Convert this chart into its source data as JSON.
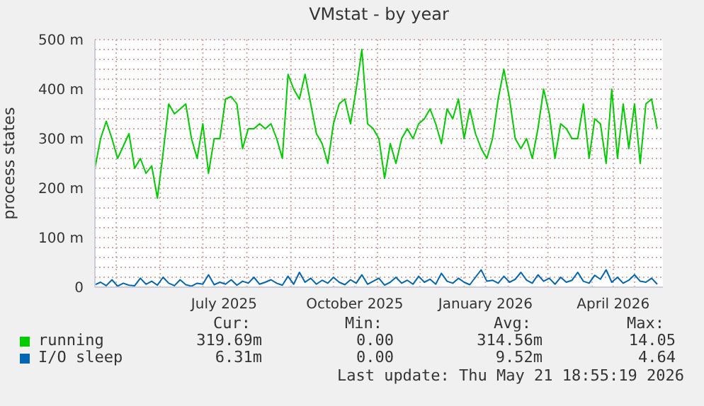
{
  "chart_data": {
    "type": "line",
    "title": "VMstat - by year",
    "ylabel": "process states",
    "x": [
      "2025-04-16",
      "2025-04-20",
      "2025-04-24",
      "2025-04-28",
      "2025-05-02",
      "2025-05-06",
      "2025-05-10",
      "2025-05-14",
      "2025-05-18",
      "2025-05-22",
      "2025-05-26",
      "2025-05-30",
      "2025-06-03",
      "2025-06-07",
      "2025-06-11",
      "2025-06-15",
      "2025-06-19",
      "2025-06-23",
      "2025-06-27",
      "2025-07-01",
      "2025-07-05",
      "2025-07-09",
      "2025-07-13",
      "2025-07-17",
      "2025-07-21",
      "2025-07-25",
      "2025-07-29",
      "2025-08-02",
      "2025-08-06",
      "2025-08-10",
      "2025-08-14",
      "2025-08-18",
      "2025-08-22",
      "2025-08-26",
      "2025-08-30",
      "2025-09-03",
      "2025-09-07",
      "2025-09-11",
      "2025-09-15",
      "2025-09-19",
      "2025-09-23",
      "2025-09-27",
      "2025-10-01",
      "2025-10-05",
      "2025-10-09",
      "2025-10-13",
      "2025-10-17",
      "2025-10-21",
      "2025-10-25",
      "2025-10-29",
      "2025-11-02",
      "2025-11-06",
      "2025-11-10",
      "2025-11-14",
      "2025-11-18",
      "2025-11-22",
      "2025-11-26",
      "2025-11-30",
      "2025-12-04",
      "2025-12-08",
      "2025-12-12",
      "2025-12-16",
      "2025-12-20",
      "2025-12-24",
      "2025-12-28",
      "2026-01-01",
      "2026-01-05",
      "2026-01-09",
      "2026-01-13",
      "2026-01-17",
      "2026-01-21",
      "2026-01-25",
      "2026-01-29",
      "2026-02-02",
      "2026-02-06",
      "2026-02-10",
      "2026-02-14",
      "2026-02-18",
      "2026-02-22",
      "2026-02-26",
      "2026-03-02",
      "2026-03-06",
      "2026-03-10",
      "2026-03-14",
      "2026-03-18",
      "2026-03-22",
      "2026-03-26",
      "2026-03-30",
      "2026-04-03",
      "2026-04-07",
      "2026-04-11",
      "2026-04-15",
      "2026-04-19",
      "2026-04-23",
      "2026-04-27",
      "2026-05-01",
      "2026-05-05",
      "2026-05-09",
      "2026-05-13",
      "2026-05-17"
    ],
    "series": [
      {
        "name": "running",
        "color": "#00cc00",
        "values": [
          240,
          300,
          335,
          300,
          260,
          285,
          310,
          240,
          260,
          230,
          245,
          180,
          270,
          370,
          350,
          360,
          370,
          300,
          260,
          330,
          230,
          300,
          300,
          380,
          385,
          370,
          280,
          320,
          320,
          330,
          320,
          330,
          300,
          260,
          430,
          400,
          380,
          430,
          370,
          310,
          290,
          250,
          330,
          370,
          380,
          330,
          400,
          480,
          330,
          320,
          300,
          220,
          290,
          250,
          300,
          320,
          300,
          330,
          340,
          360,
          330,
          290,
          360,
          340,
          380,
          300,
          360,
          310,
          280,
          260,
          300,
          380,
          440,
          380,
          300,
          280,
          300,
          260,
          320,
          400,
          350,
          260,
          330,
          320,
          300,
          300,
          370,
          260,
          340,
          330,
          250,
          400,
          260,
          370,
          280,
          370,
          250,
          370,
          380,
          320
        ]
      },
      {
        "name": "I/O sleep",
        "color": "#0066b3",
        "values": [
          5,
          10,
          3,
          15,
          2,
          8,
          4,
          3,
          18,
          6,
          12,
          4,
          20,
          8,
          3,
          15,
          5,
          2,
          8,
          6,
          25,
          5,
          10,
          6,
          15,
          4,
          12,
          8,
          20,
          6,
          10,
          15,
          8,
          4,
          22,
          6,
          30,
          10,
          18,
          6,
          14,
          8,
          20,
          10,
          5,
          15,
          8,
          25,
          6,
          12,
          18,
          4,
          10,
          20,
          8,
          14,
          6,
          22,
          10,
          16,
          6,
          28,
          12,
          8,
          18,
          10,
          5,
          20,
          35,
          12,
          14,
          8,
          22,
          10,
          16,
          30,
          14,
          8,
          25,
          12,
          18,
          6,
          20,
          10,
          14,
          30,
          12,
          8,
          24,
          16,
          35,
          10,
          20,
          8,
          14,
          25,
          12,
          10,
          18,
          6
        ]
      }
    ],
    "xlim": [
      "2025-04-16",
      "2026-05-21"
    ],
    "xticks": [
      {
        "value": "2025-05-01",
        "label": null
      },
      {
        "value": "2025-06-01",
        "label": null
      },
      {
        "value": "2025-07-01",
        "label": null
      },
      {
        "value": "2025-07-16",
        "label": "July 2025"
      },
      {
        "value": "2025-08-01",
        "label": null
      },
      {
        "value": "2025-09-01",
        "label": null
      },
      {
        "value": "2025-10-01",
        "label": null
      },
      {
        "value": "2025-10-16",
        "label": "October 2025"
      },
      {
        "value": "2025-11-01",
        "label": null
      },
      {
        "value": "2025-12-01",
        "label": null
      },
      {
        "value": "2026-01-01",
        "label": null
      },
      {
        "value": "2026-01-16",
        "label": "January 2026"
      },
      {
        "value": "2026-02-01",
        "label": null
      },
      {
        "value": "2026-03-01",
        "label": null
      },
      {
        "value": "2026-04-01",
        "label": null
      },
      {
        "value": "2026-04-16",
        "label": "April 2026"
      },
      {
        "value": "2026-05-01",
        "label": null
      }
    ],
    "ylim": [
      0,
      500
    ],
    "yticks": [
      0,
      {
        "value": 20,
        "label": null
      },
      {
        "value": 40,
        "label": null
      },
      {
        "value": 60,
        "label": null
      },
      {
        "value": 80,
        "label": null
      },
      {
        "value": 100,
        "label": "100 m"
      },
      {
        "value": 120,
        "label": null
      },
      {
        "value": 140,
        "label": null
      },
      {
        "value": 160,
        "label": null
      },
      {
        "value": 180,
        "label": null
      },
      {
        "value": 200,
        "label": "200 m"
      },
      {
        "value": 220,
        "label": null
      },
      {
        "value": 240,
        "label": null
      },
      {
        "value": 260,
        "label": null
      },
      {
        "value": 280,
        "label": null
      },
      {
        "value": 300,
        "label": "300 m"
      },
      {
        "value": 320,
        "label": null
      },
      {
        "value": 340,
        "label": null
      },
      {
        "value": 360,
        "label": null
      },
      {
        "value": 380,
        "label": null
      },
      {
        "value": 400,
        "label": "400 m"
      },
      {
        "value": 420,
        "label": null
      },
      {
        "value": 440,
        "label": null
      },
      {
        "value": 460,
        "label": null
      },
      {
        "value": 480,
        "label": null
      },
      {
        "value": 500,
        "label": "500 m"
      }
    ],
    "grid": true,
    "legend": "bottom",
    "annotations": [
      "Cur:",
      "Min:",
      "Avg:",
      "Max:",
      "319.69m",
      "0.00",
      "314.56m",
      "14.05",
      "6.31m",
      "0.00",
      "9.52m",
      "4.64",
      "Last update: Thu May 21 18:55:19 2026"
    ]
  }
}
